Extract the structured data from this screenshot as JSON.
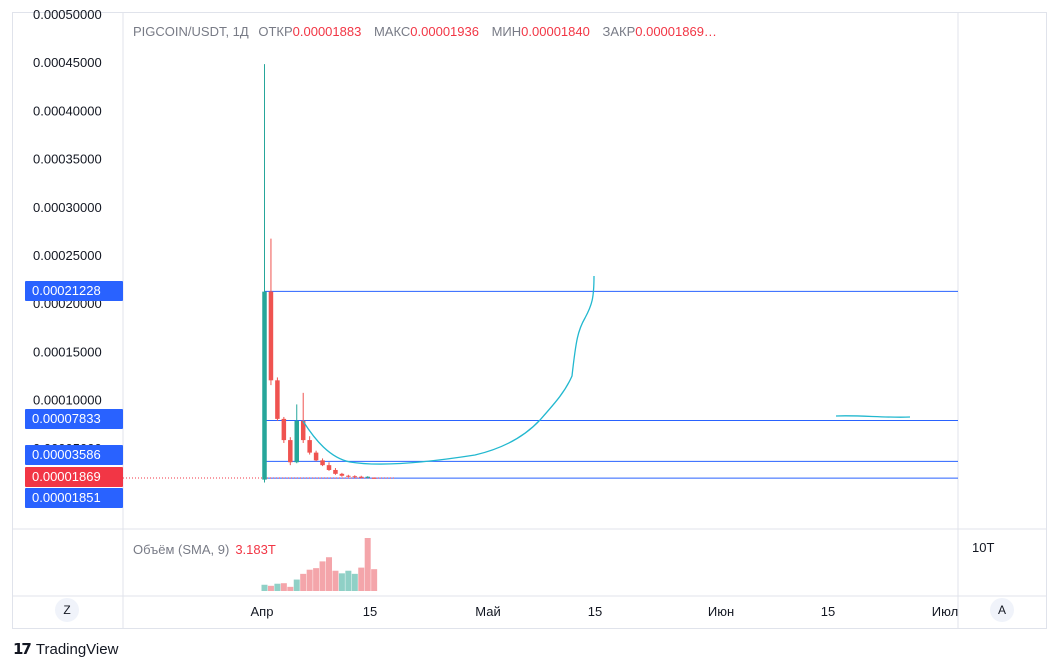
{
  "header": {
    "symbol": "PIGCOIN/USDT, 1Д",
    "items": [
      {
        "key": "ОТКР",
        "value": "0.00001883"
      },
      {
        "key": "МАКС",
        "value": "0.00001936"
      },
      {
        "key": "МИН",
        "value": "0.00001840"
      },
      {
        "key": "ЗАКР",
        "value": "0.00001869…"
      }
    ]
  },
  "volume": {
    "label": "Объём (SMA, 9)",
    "value": "3.183T",
    "scale_label": "10T"
  },
  "price_tags": [
    {
      "label": "0.00021228",
      "value": 0.00021228,
      "color": "#2962ff"
    },
    {
      "label": "0.00007833",
      "value": 7.833e-05,
      "color": "#2962ff"
    },
    {
      "label": "0.00003586",
      "value": 3.586e-05,
      "color": "#2962ff"
    },
    {
      "label": "0.00001869",
      "value": 1.869e-05,
      "color": "#f23645"
    },
    {
      "label": "0.00001851",
      "value": 1.851e-05,
      "color": "#2962ff"
    }
  ],
  "buttons": {
    "left": "Z",
    "right": "A"
  },
  "footer": {
    "logo": "17",
    "brand": "TradingView"
  },
  "colors": {
    "up": "#26a69a",
    "down": "#ef5350",
    "up_vol": "#8fd0c6",
    "down_vol": "#f4a5aa",
    "line": "#2962ff",
    "drawing": "#22b8cf"
  },
  "chart_data": {
    "type": "candlestick",
    "title": "PIGCOIN/USDT, 1Д",
    "ylim": [
      0,
      0.0005
    ],
    "yticks": [
      "0.00050000",
      "0.00045000",
      "0.00040000",
      "0.00035000",
      "0.00030000",
      "0.00025000",
      "0.00020000",
      "0.00015000",
      "0.00010000",
      "0.00005000"
    ],
    "xticks": [
      "Апр",
      "15",
      "Май",
      "15",
      "Июн",
      "15",
      "Июл"
    ],
    "candles": [
      {
        "date": "04-01",
        "o": 1.7e-05,
        "h": 0.000448,
        "l": 1.4e-05,
        "c": 0.000212
      },
      {
        "date": "04-02",
        "o": 0.000212,
        "h": 0.000267,
        "l": 0.000115,
        "c": 0.00012
      },
      {
        "date": "04-03",
        "o": 0.00012,
        "h": 0.000123,
        "l": 7.8e-05,
        "c": 8e-05
      },
      {
        "date": "04-04",
        "o": 8e-05,
        "h": 8.2e-05,
        "l": 5.5e-05,
        "c": 5.8e-05
      },
      {
        "date": "04-05",
        "o": 5.8e-05,
        "h": 6.1e-05,
        "l": 3.2e-05,
        "c": 3.5e-05
      },
      {
        "date": "04-06",
        "o": 3.5e-05,
        "h": 9.5e-05,
        "l": 3.4e-05,
        "c": 7.8e-05
      },
      {
        "date": "04-07",
        "o": 7.8e-05,
        "h": 0.000107,
        "l": 5.5e-05,
        "c": 5.8e-05
      },
      {
        "date": "04-08",
        "o": 5.8e-05,
        "h": 6.2e-05,
        "l": 4.3e-05,
        "c": 4.5e-05
      },
      {
        "date": "04-09",
        "o": 4.5e-05,
        "h": 4.7e-05,
        "l": 3.6e-05,
        "c": 3.7e-05
      },
      {
        "date": "04-10",
        "o": 3.7e-05,
        "h": 3.9e-05,
        "l": 3.1e-05,
        "c": 3.2e-05
      },
      {
        "date": "04-11",
        "o": 3.2e-05,
        "h": 3.5e-05,
        "l": 2.6e-05,
        "c": 2.7e-05
      },
      {
        "date": "04-12",
        "o": 2.7e-05,
        "h": 2.9e-05,
        "l": 2.2e-05,
        "c": 2.3e-05
      },
      {
        "date": "04-13",
        "o": 2.3e-05,
        "h": 2.4e-05,
        "l": 2e-05,
        "c": 2.1e-05
      },
      {
        "date": "04-14",
        "o": 2.1e-05,
        "h": 2.2e-05,
        "l": 1.95e-05,
        "c": 2.05e-05
      },
      {
        "date": "04-15",
        "o": 2.05e-05,
        "h": 2.15e-05,
        "l": 1.9e-05,
        "c": 2e-05
      },
      {
        "date": "04-16",
        "o": 2e-05,
        "h": 2.1e-05,
        "l": 1.85e-05,
        "c": 1.95e-05
      },
      {
        "date": "04-17",
        "o": 1.95e-05,
        "h": 2.05e-05,
        "l": 1.85e-05,
        "c": 2e-05
      },
      {
        "date": "04-18",
        "o": 1.883e-05,
        "h": 1.936e-05,
        "l": 1.84e-05,
        "c": 1.869e-05
      }
    ],
    "volume": [
      {
        "date": "04-01",
        "v": 1.2,
        "up": true
      },
      {
        "date": "04-02",
        "v": 1.0,
        "up": false
      },
      {
        "date": "04-03",
        "v": 1.4,
        "up": true
      },
      {
        "date": "04-04",
        "v": 1.5,
        "up": false
      },
      {
        "date": "04-05",
        "v": 0.8,
        "up": false
      },
      {
        "date": "04-06",
        "v": 2.2,
        "up": true
      },
      {
        "date": "04-07",
        "v": 3.3,
        "up": false
      },
      {
        "date": "04-08",
        "v": 4.1,
        "up": false
      },
      {
        "date": "04-09",
        "v": 4.4,
        "up": false
      },
      {
        "date": "04-10",
        "v": 5.7,
        "up": false
      },
      {
        "date": "04-11",
        "v": 6.5,
        "up": false
      },
      {
        "date": "04-12",
        "v": 3.9,
        "up": false
      },
      {
        "date": "04-13",
        "v": 3.4,
        "up": true
      },
      {
        "date": "04-14",
        "v": 3.9,
        "up": true
      },
      {
        "date": "04-15",
        "v": 3.3,
        "up": true
      },
      {
        "date": "04-16",
        "v": 4.5,
        "up": false
      },
      {
        "date": "04-17",
        "v": 10.2,
        "up": false
      },
      {
        "date": "04-18",
        "v": 4.2,
        "up": false
      }
    ],
    "hlines": [
      0.00021228,
      7.833e-05,
      3.586e-05,
      1.851e-05
    ]
  }
}
